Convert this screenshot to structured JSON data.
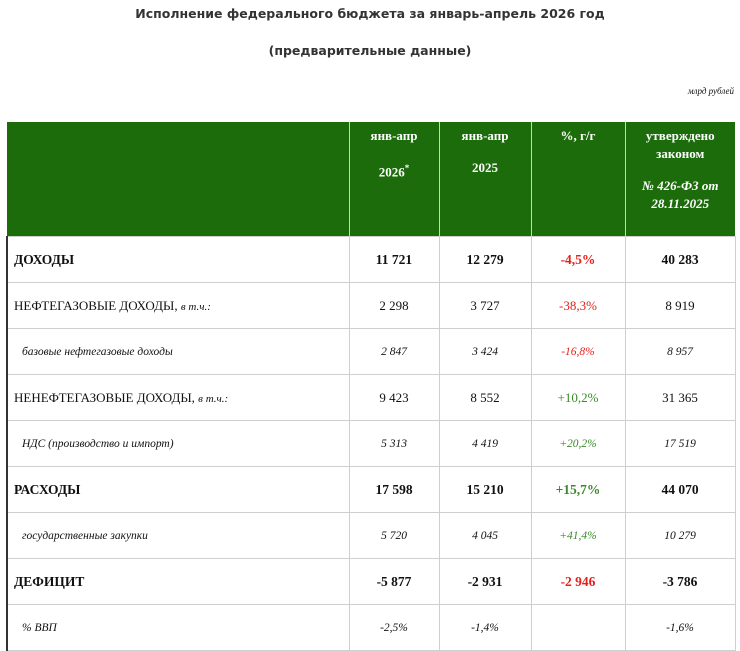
{
  "header": {
    "title": "Исполнение федерального бюджета за январь-апрель 2026 год",
    "subtitle": "(предварительные данные)",
    "unit": "млрд рублей"
  },
  "table": {
    "columns": [
      {
        "line1": "янв-апр",
        "line2": "2026",
        "sup": "*"
      },
      {
        "line1": "янв-апр",
        "line2": "2025"
      },
      {
        "line1": "%, г/г"
      },
      {
        "line1": "утверждено законом",
        "line2": "№ 426-ФЗ от 28.11.2025"
      }
    ],
    "rows": [
      {
        "style": "bold",
        "label": "ДОХОДЫ",
        "cells": [
          "11 721",
          "12 279",
          "-4,5%",
          "40 283"
        ],
        "color": "#e3211c"
      },
      {
        "style": "main",
        "label": "НЕФТЕГАЗОВЫЕ ДОХОДЫ,",
        "note": "в т.ч.:",
        "cells": [
          "2 298",
          "3 727",
          "-38,3%",
          "8 919"
        ],
        "color": "#e3211c"
      },
      {
        "style": "sub",
        "label": "базовые нефтегазовые доходы",
        "cells": [
          "2 847",
          "3 424",
          "-16,8%",
          "8 957"
        ],
        "color": "#e3211c"
      },
      {
        "style": "main",
        "label": "НЕНЕФТЕГАЗОВЫЕ ДОХОДЫ,",
        "note": "в т.ч.:",
        "cells": [
          "9 423",
          "8 552",
          "+10,2%",
          "31 365"
        ],
        "color": "#3b8a2c"
      },
      {
        "style": "sub",
        "label": "НДС (производство и импорт)",
        "cells": [
          "5 313",
          "4 419",
          "+20,2%",
          "17 519"
        ],
        "color": "#3b8a2c"
      },
      {
        "style": "bold",
        "label": "РАСХОДЫ",
        "cells": [
          "17 598",
          "15 210",
          "+15,7%",
          "44 070"
        ],
        "color": "#3b8a2c"
      },
      {
        "style": "sub",
        "label": "государственные закупки",
        "cells": [
          "5 720",
          "4 045",
          "+41,4%",
          "10 279"
        ],
        "color": "#3b8a2c"
      },
      {
        "style": "bold",
        "label": "ДЕФИЦИТ",
        "cells": [
          "-5 877",
          "-2 931",
          "-2 946",
          "-3 786"
        ],
        "color": "#e3211c"
      },
      {
        "style": "sub",
        "label": "% ВВП",
        "cells": [
          "-2,5%",
          "-1,4%",
          "",
          "-1,6%"
        ],
        "color": "#e3211c"
      }
    ]
  }
}
